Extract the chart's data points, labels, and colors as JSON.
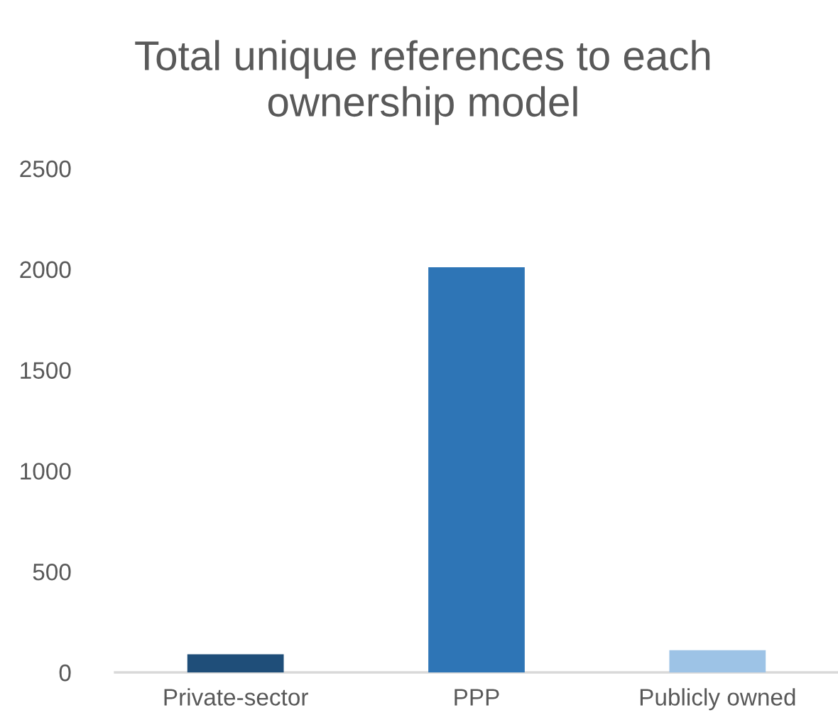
{
  "chart_data": {
    "type": "bar",
    "title": "Total unique references to each\nownership model",
    "categories": [
      "Private-sector",
      "PPP",
      "Publicly owned"
    ],
    "values": [
      90,
      2010,
      110
    ],
    "colors": [
      "#1f4e79",
      "#2e75b6",
      "#9dc3e6"
    ],
    "ylim": [
      0,
      2500
    ],
    "yticks": [
      0,
      500,
      1000,
      1500,
      2000,
      2500
    ]
  }
}
